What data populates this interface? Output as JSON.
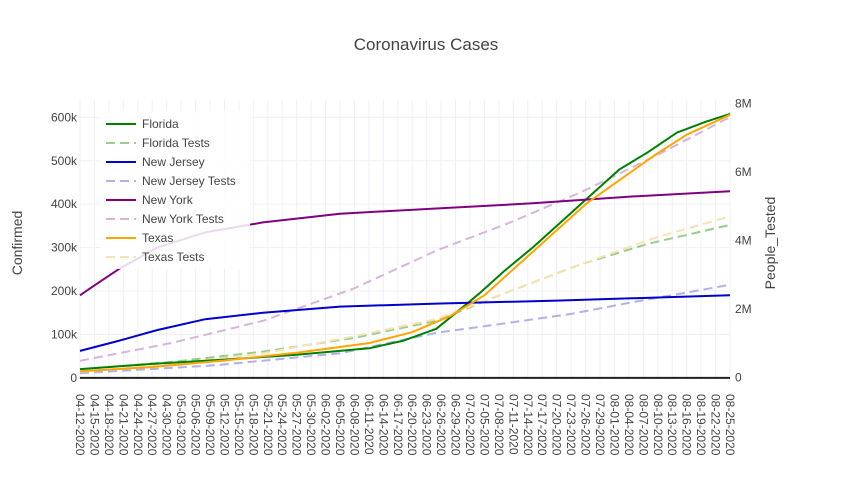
{
  "chart_data": {
    "type": "line",
    "title": "Coronavirus Cases",
    "ylabel": "Confirmed",
    "y2label": "People_Tested",
    "ylim": [
      -5000,
      640000
    ],
    "y2lim": [
      -80000,
      8100000
    ],
    "yticks": [
      0,
      100000,
      200000,
      300000,
      400000,
      500000,
      600000
    ],
    "ytick_labels": [
      "0",
      "100k",
      "200k",
      "300k",
      "400k",
      "500k",
      "600k"
    ],
    "y2ticks": [
      0,
      2000000,
      4000000,
      6000000,
      8000000
    ],
    "y2tick_labels": [
      "0",
      "2M",
      "4M",
      "6M",
      "8M"
    ],
    "x_start": "2020-04-12",
    "x_end": "2020-08-25",
    "xtick_labels": [
      "04-12-2020",
      "04-15-2020",
      "04-18-2020",
      "04-21-2020",
      "04-24-2020",
      "04-27-2020",
      "04-30-2020",
      "05-03-2020",
      "05-06-2020",
      "05-09-2020",
      "05-12-2020",
      "05-15-2020",
      "05-18-2020",
      "05-21-2020",
      "05-24-2020",
      "05-27-2020",
      "05-30-2020",
      "06-02-2020",
      "06-05-2020",
      "06-08-2020",
      "06-11-2020",
      "06-14-2020",
      "06-17-2020",
      "06-20-2020",
      "06-23-2020",
      "06-26-2020",
      "06-29-2020",
      "07-02-2020",
      "07-05-2020",
      "07-08-2020",
      "07-11-2020",
      "07-14-2020",
      "07-17-2020",
      "07-20-2020",
      "07-23-2020",
      "07-26-2020",
      "07-29-2020",
      "08-01-2020",
      "08-04-2020",
      "08-07-2020",
      "08-10-2020",
      "08-13-2020",
      "08-16-2020",
      "08-19-2020",
      "08-22-2020",
      "08-25-2020"
    ],
    "legend_position": "top-left",
    "grid": true,
    "series": [
      {
        "name": "Florida",
        "axis": "y",
        "dash": "solid",
        "color": "#008000",
        "x": [
          "2020-04-12",
          "2020-04-27",
          "2020-05-12",
          "2020-05-27",
          "2020-06-11",
          "2020-06-18",
          "2020-06-25",
          "2020-06-30",
          "2020-07-04",
          "2020-07-09",
          "2020-07-15",
          "2020-07-21",
          "2020-07-27",
          "2020-08-02",
          "2020-08-08",
          "2020-08-14",
          "2020-08-20",
          "2020-08-25"
        ],
        "y": [
          20000,
          32000,
          42000,
          53000,
          68000,
          85000,
          113000,
          158000,
          195000,
          245000,
          300000,
          360000,
          420000,
          480000,
          520000,
          565000,
          590000,
          608000
        ]
      },
      {
        "name": "Florida Tests",
        "axis": "y2",
        "dash": "dash",
        "color": "#98cc8a",
        "x": [
          "2020-04-12",
          "2020-05-01",
          "2020-05-20",
          "2020-06-08",
          "2020-06-25",
          "2020-07-10",
          "2020-07-25",
          "2020-08-08",
          "2020-08-25"
        ],
        "y": [
          230000,
          450000,
          750000,
          1150000,
          1650000,
          2500000,
          3300000,
          3900000,
          4450000
        ]
      },
      {
        "name": "New Jersey",
        "axis": "y",
        "dash": "solid",
        "color": "#0000cd",
        "x": [
          "2020-04-12",
          "2020-04-20",
          "2020-04-28",
          "2020-05-08",
          "2020-05-20",
          "2020-06-05",
          "2020-06-25",
          "2020-07-20",
          "2020-08-10",
          "2020-08-25"
        ],
        "y": [
          62000,
          85000,
          110000,
          135000,
          150000,
          164000,
          171000,
          178000,
          185000,
          190000
        ]
      },
      {
        "name": "New Jersey Tests",
        "axis": "y2",
        "dash": "dash",
        "color": "#b0b0ec",
        "x": [
          "2020-04-12",
          "2020-05-10",
          "2020-06-05",
          "2020-06-25",
          "2020-07-08",
          "2020-07-23",
          "2020-08-05",
          "2020-08-25"
        ],
        "y": [
          120000,
          350000,
          700000,
          1300000,
          1550000,
          1850000,
          2200000,
          2700000
        ]
      },
      {
        "name": "New York",
        "axis": "y",
        "dash": "solid",
        "color": "#800080",
        "x": [
          "2020-04-12",
          "2020-04-15",
          "2020-04-20",
          "2020-04-28",
          "2020-05-08",
          "2020-05-20",
          "2020-06-05",
          "2020-06-25",
          "2020-07-15",
          "2020-08-05",
          "2020-08-25"
        ],
        "y": [
          190000,
          213000,
          250000,
          300000,
          335000,
          358000,
          378000,
          390000,
          402000,
          418000,
          430000
        ]
      },
      {
        "name": "New York Tests",
        "axis": "y2",
        "dash": "dash",
        "color": "#d8b4dc",
        "x": [
          "2020-04-12",
          "2020-05-01",
          "2020-05-20",
          "2020-06-08",
          "2020-06-25",
          "2020-07-10",
          "2020-07-25",
          "2020-08-10",
          "2020-08-25"
        ],
        "y": [
          480000,
          1000000,
          1650000,
          2600000,
          3700000,
          4500000,
          5400000,
          6500000,
          7600000
        ]
      },
      {
        "name": "Texas",
        "axis": "y",
        "dash": "solid",
        "color": "#ffa500",
        "x": [
          "2020-04-12",
          "2020-04-27",
          "2020-05-12",
          "2020-05-27",
          "2020-06-11",
          "2020-06-20",
          "2020-06-28",
          "2020-07-05",
          "2020-07-12",
          "2020-07-19",
          "2020-07-26",
          "2020-08-02",
          "2020-08-09",
          "2020-08-16",
          "2020-08-25"
        ],
        "y": [
          15000,
          25000,
          40000,
          58000,
          80000,
          105000,
          143000,
          190000,
          260000,
          330000,
          400000,
          455000,
          510000,
          560000,
          606000
        ]
      },
      {
        "name": "Texas Tests",
        "axis": "y2",
        "dash": "dash",
        "color": "#f9e2b0",
        "x": [
          "2020-04-12",
          "2020-05-01",
          "2020-05-20",
          "2020-06-08",
          "2020-06-25",
          "2020-07-10",
          "2020-07-25",
          "2020-08-10",
          "2020-08-25"
        ],
        "y": [
          160000,
          380000,
          700000,
          1200000,
          1700000,
          2500000,
          3300000,
          4100000,
          4700000
        ]
      }
    ]
  }
}
